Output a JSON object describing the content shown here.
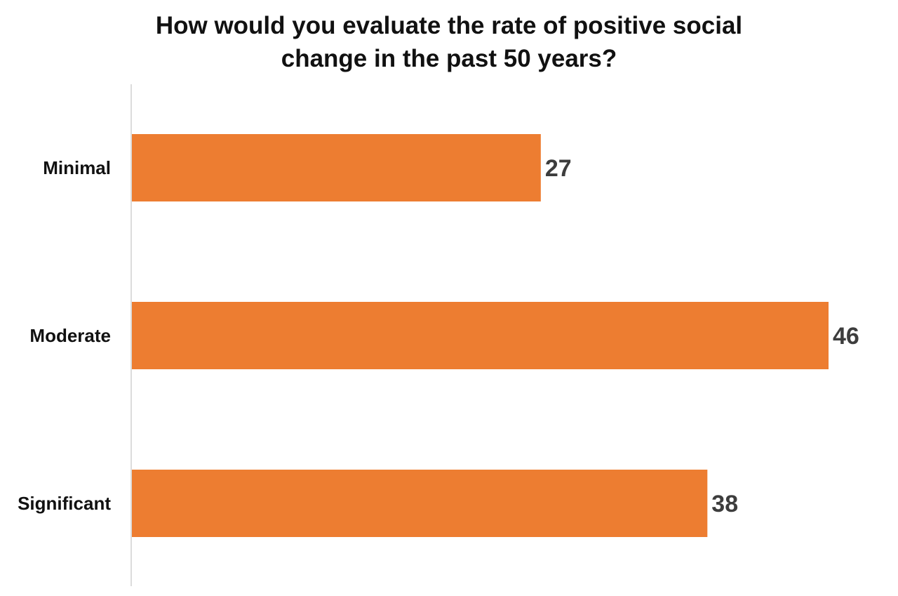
{
  "chart_data": {
    "type": "bar",
    "orientation": "horizontal",
    "title": "How would you evaluate the rate of positive social change in the past 50 years?",
    "title_lines": [
      "How would you evaluate the rate of positive social",
      "change in the past 50 years?"
    ],
    "categories": [
      "Minimal",
      "Moderate",
      "Significant"
    ],
    "values": [
      27,
      46,
      38
    ],
    "data_labels": [
      "27",
      "46",
      "38"
    ],
    "xlim": [
      0,
      46
    ],
    "bar_color": "#ED7D31",
    "axis_color": "#D0D0D0",
    "grid": false,
    "legend": "none"
  }
}
